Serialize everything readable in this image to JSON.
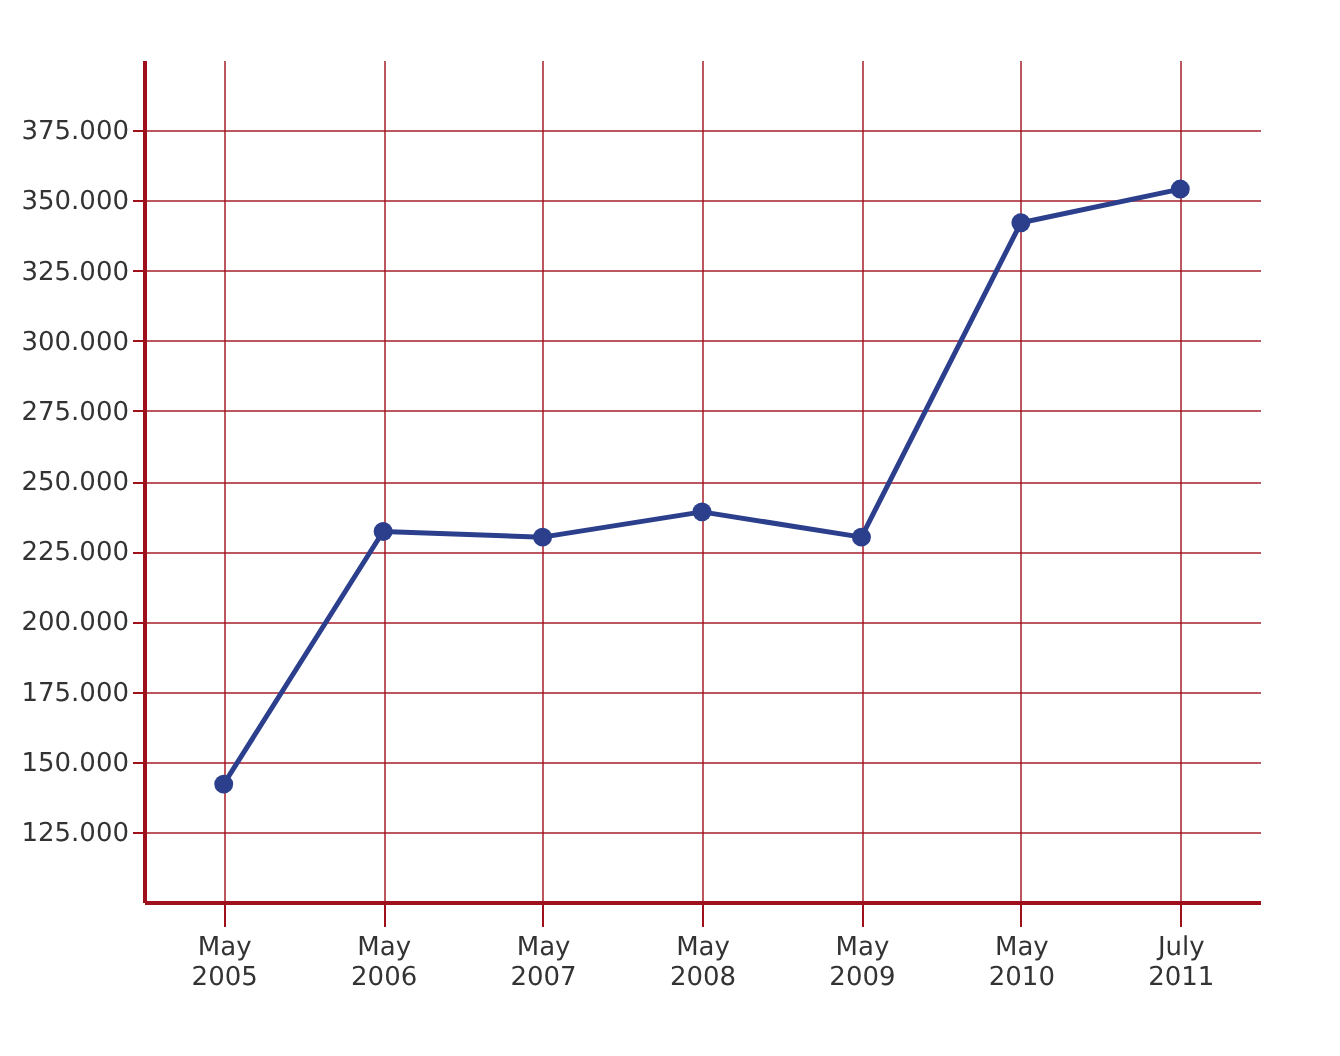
{
  "chart_data": {
    "type": "line",
    "categories": [
      "May 2005",
      "May 2006",
      "May 2007",
      "May 2008",
      "May 2009",
      "May 2010",
      "July 2011"
    ],
    "series": [
      {
        "color": "#2b3f8c",
        "values": [
          142000,
          232000,
          230000,
          239000,
          230000,
          342000,
          354000
        ]
      }
    ],
    "ylim": [
      100000,
      400000
    ],
    "yticks": [
      {
        "value": 125000,
        "label": "125.000"
      },
      {
        "value": 150000,
        "label": "150.000"
      },
      {
        "value": 175000,
        "label": "175.000"
      },
      {
        "value": 200000,
        "label": "200.000"
      },
      {
        "value": 225000,
        "label": "225.000"
      },
      {
        "value": 250000,
        "label": "250.000"
      },
      {
        "value": 275000,
        "label": "275.000"
      },
      {
        "value": 300000,
        "label": "300.000"
      },
      {
        "value": 325000,
        "label": "325.000"
      },
      {
        "value": 350000,
        "label": "350.000"
      },
      {
        "value": 375000,
        "label": "375.000"
      }
    ],
    "grid": true,
    "marker": "circle",
    "line_style": "solid"
  }
}
